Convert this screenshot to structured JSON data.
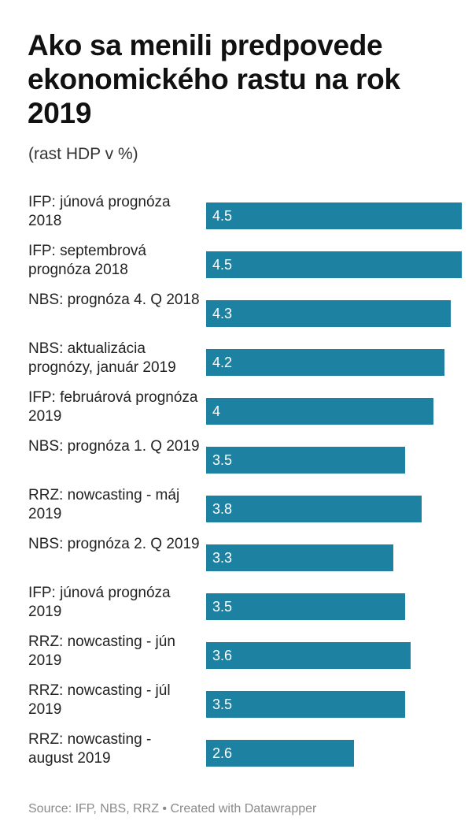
{
  "header": {
    "title": "Ako sa menili predpovede ekonomického rastu na rok 2019",
    "subtitle": "(rast HDP v %)"
  },
  "footer": {
    "source": "Source: IFP, NBS, RRZ • Created with Datawrapper"
  },
  "colors": {
    "bar": "#1d81a2",
    "bar_label": "#ffffff"
  },
  "chart_data": {
    "type": "bar",
    "orientation": "horizontal",
    "title": "Ako sa menili predpovede ekonomického rastu na rok 2019",
    "subtitle": "(rast HDP v %)",
    "categories": [
      "IFP: júnová prognóza 2018",
      "IFP: septembrová prognóza 2018",
      "NBS: prognóza 4. Q 2018",
      "NBS: aktualizácia prognózy, január 2019",
      "IFP: februárová prognóza 2019",
      "NBS: prognóza 1. Q 2019",
      "RRZ: nowcasting - máj 2019",
      "NBS: prognóza 2. Q 2019",
      "IFP: júnová prognóza 2019",
      "RRZ: nowcasting - jún 2019",
      "RRZ: nowcasting - júl 2019",
      "RRZ: nowcasting - august 2019"
    ],
    "values": [
      4.5,
      4.5,
      4.3,
      4.2,
      4,
      3.5,
      3.8,
      3.3,
      3.5,
      3.6,
      3.5,
      2.6
    ],
    "value_labels": [
      "4.5",
      "4.5",
      "4.3",
      "4.2",
      "4",
      "3.5",
      "3.8",
      "3.3",
      "3.5",
      "3.6",
      "3.5",
      "2.6"
    ],
    "xlim": [
      0,
      4.5
    ],
    "grid": false,
    "legend": "none"
  }
}
